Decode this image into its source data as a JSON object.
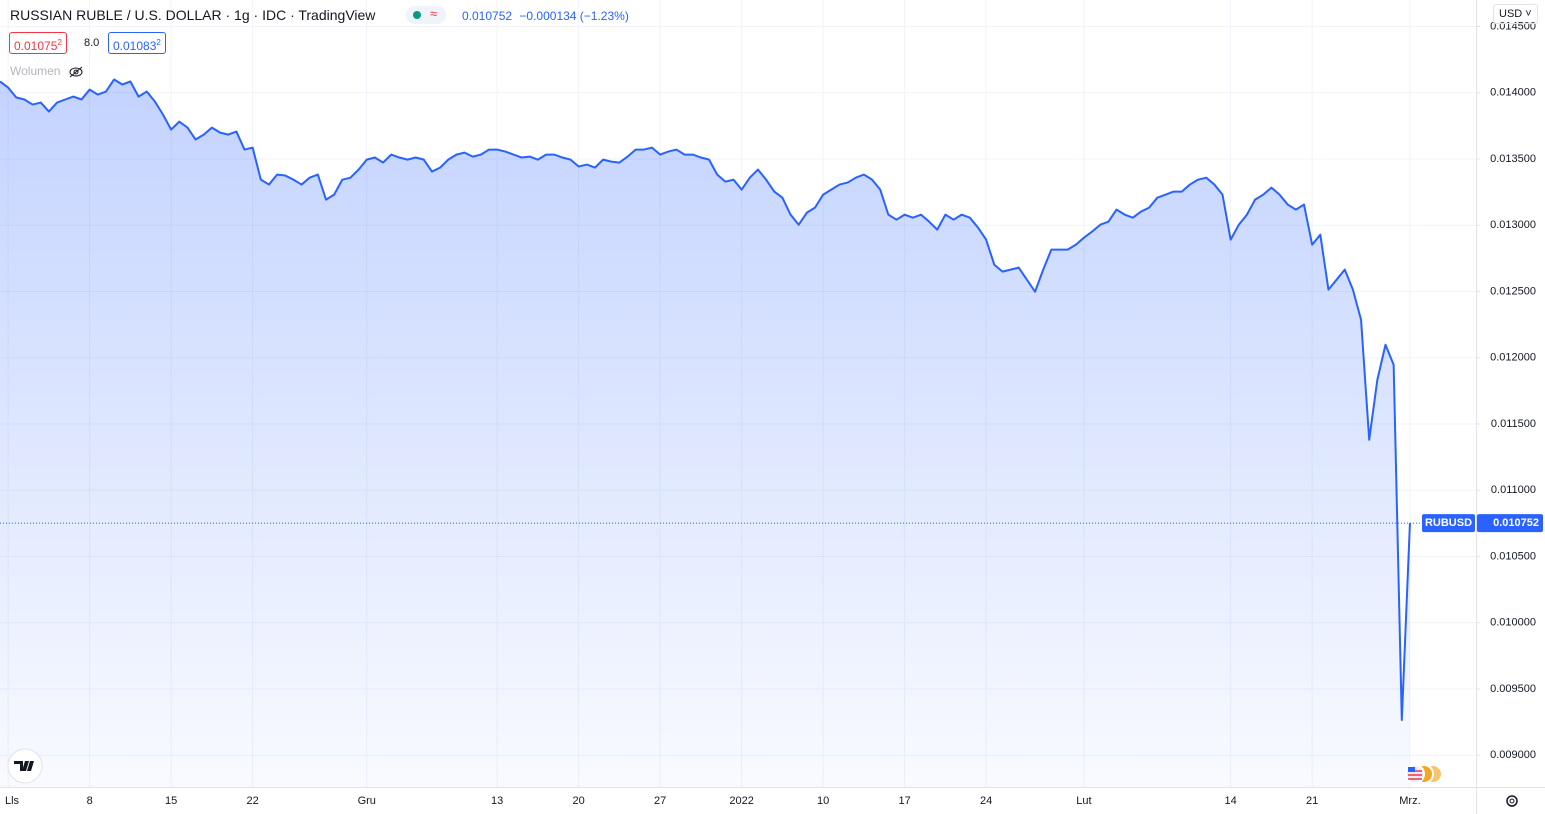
{
  "header": {
    "title": "RUSSIAN RUBLE / U.S. DOLLAR · 1g · IDC · TradingView",
    "change": "−0.000134 (−1.23%)",
    "bid": "0.01075",
    "bid_sup": "2",
    "spread": "8.0",
    "ask": "0.01083",
    "ask_sup": "2",
    "volume": "Wolumen",
    "currency": "USD"
  },
  "chart_data": {
    "type": "area",
    "symbol": "RUBUSD",
    "last_price": 0.010752,
    "color": "#2962ff",
    "grid": true,
    "ylim": [
      0.00876,
      0.0147
    ],
    "yticks": [
      {
        "value": 0.009,
        "label": "0.009000"
      },
      {
        "value": 0.0095,
        "label": "0.009500"
      },
      {
        "value": 0.01,
        "label": "0.010000"
      },
      {
        "value": 0.0105,
        "label": "0.010500"
      },
      {
        "value": 0.011,
        "label": "0.011000"
      },
      {
        "value": 0.0115,
        "label": "0.011500"
      },
      {
        "value": 0.012,
        "label": "0.012000"
      },
      {
        "value": 0.0125,
        "label": "0.012500"
      },
      {
        "value": 0.013,
        "label": "0.013000"
      },
      {
        "value": 0.0135,
        "label": "0.013500"
      },
      {
        "value": 0.014,
        "label": "0.014000"
      },
      {
        "value": 0.0145,
        "label": "0.014500"
      }
    ],
    "categories": [
      null,
      "Lls",
      null,
      null,
      null,
      null,
      null,
      null,
      null,
      null,
      null,
      "8",
      null,
      null,
      null,
      null,
      null,
      null,
      null,
      null,
      null,
      "15",
      null,
      null,
      null,
      null,
      null,
      null,
      null,
      null,
      null,
      "22",
      null,
      null,
      null,
      null,
      null,
      null,
      null,
      null,
      null,
      null,
      null,
      null,
      null,
      "Gru",
      null,
      null,
      null,
      null,
      null,
      null,
      null,
      null,
      null,
      null,
      null,
      null,
      null,
      null,
      null,
      "13",
      null,
      null,
      null,
      null,
      null,
      null,
      null,
      null,
      null,
      "20",
      null,
      null,
      null,
      null,
      null,
      null,
      null,
      null,
      null,
      "27",
      null,
      null,
      null,
      null,
      null,
      null,
      null,
      null,
      null,
      "2022",
      null,
      null,
      null,
      null,
      null,
      null,
      null,
      null,
      null,
      "10",
      null,
      null,
      null,
      null,
      null,
      null,
      null,
      null,
      null,
      "17",
      null,
      null,
      null,
      null,
      null,
      null,
      null,
      null,
      null,
      "24",
      null,
      null,
      null,
      null,
      null,
      null,
      null,
      null,
      null,
      null,
      null,
      "Lut",
      null,
      null,
      null,
      null,
      null,
      null,
      null,
      null,
      null,
      null,
      null,
      null,
      null,
      null,
      null,
      null,
      null,
      "14",
      null,
      null,
      null,
      null,
      null,
      null,
      null,
      null,
      null,
      "21",
      null,
      null,
      null,
      null,
      null,
      null,
      null,
      null,
      null,
      null,
      null,
      "Mrz."
    ],
    "values": [
      0.014085,
      0.014039,
      0.013964,
      0.013949,
      0.013911,
      0.013926,
      0.013858,
      0.013926,
      0.013949,
      0.013971,
      0.013949,
      0.014024,
      0.013986,
      0.014009,
      0.0141,
      0.014062,
      0.014085,
      0.013971,
      0.014009,
      0.013934,
      0.013835,
      0.013722,
      0.013782,
      0.013737,
      0.013647,
      0.013684,
      0.013737,
      0.013699,
      0.013684,
      0.013707,
      0.013571,
      0.013586,
      0.013344,
      0.013307,
      0.013382,
      0.013375,
      0.013344,
      0.013307,
      0.013359,
      0.013382,
      0.013193,
      0.013231,
      0.013344,
      0.013359,
      0.01342,
      0.013495,
      0.013511,
      0.013473,
      0.013533,
      0.013511,
      0.013495,
      0.013511,
      0.013495,
      0.013405,
      0.013435,
      0.013495,
      0.013533,
      0.013548,
      0.013518,
      0.013533,
      0.013571,
      0.013571,
      0.013556,
      0.013533,
      0.013511,
      0.013518,
      0.013495,
      0.013533,
      0.013533,
      0.013511,
      0.013495,
      0.013443,
      0.013458,
      0.013435,
      0.013495,
      0.01348,
      0.013473,
      0.013518,
      0.013571,
      0.013571,
      0.013586,
      0.013533,
      0.013556,
      0.013571,
      0.013533,
      0.013533,
      0.013511,
      0.013495,
      0.013382,
      0.013329,
      0.013344,
      0.013269,
      0.013359,
      0.01342,
      0.013344,
      0.013254,
      0.013208,
      0.01308,
      0.013004,
      0.013095,
      0.013133,
      0.013231,
      0.013269,
      0.013307,
      0.013322,
      0.013359,
      0.013382,
      0.013344,
      0.013269,
      0.01308,
      0.013042,
      0.01308,
      0.013057,
      0.01308,
      0.013027,
      0.012967,
      0.01308,
      0.013042,
      0.01308,
      0.013057,
      0.012982,
      0.012891,
      0.012702,
      0.01265,
      0.012665,
      0.01268,
      0.012589,
      0.012498,
      0.012665,
      0.012816,
      0.012816,
      0.012816,
      0.012853,
      0.012906,
      0.012952,
      0.013004,
      0.013027,
      0.013118,
      0.01308,
      0.013057,
      0.013103,
      0.013133,
      0.013208,
      0.013231,
      0.013254,
      0.013254,
      0.013307,
      0.013344,
      0.013359,
      0.013307,
      0.013231,
      0.012891,
      0.013004,
      0.01308,
      0.013193,
      0.013231,
      0.013284,
      0.013231,
      0.013156,
      0.013118,
      0.013156,
      0.012853,
      0.012929,
      0.012514,
      0.012589,
      0.012665,
      0.012514,
      0.012287,
      0.011381,
      0.011834,
      0.012098,
      0.011947,
      0.009266,
      0.010752
    ]
  }
}
